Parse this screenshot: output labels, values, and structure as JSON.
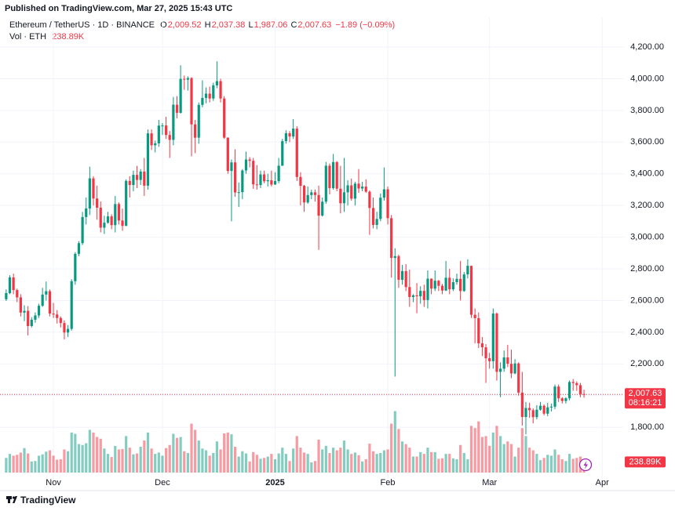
{
  "published": "Published on TradingView.com, Mar 27, 2025 15:43 UTC",
  "chart_data": {
    "type": "candlestick",
    "symbol": "Ethereum / TetherUS · 1D · BINANCE",
    "ohlc_labels": [
      {
        "key": "O",
        "value": "2,009.52"
      },
      {
        "key": "H",
        "value": "2,037.38"
      },
      {
        "key": "L",
        "value": "1,987.06"
      },
      {
        "key": "C",
        "value": "2,007.63"
      }
    ],
    "change": "−1.89 (−0.09%)",
    "volume_title": "Vol · ETH",
    "volume_label": "238.89K",
    "last_price_label": "2,007.63",
    "countdown": "08:16:21",
    "up_color": "#089981",
    "down_color": "#f23645",
    "grid": true,
    "xlim": [
      -1.7,
      170
    ],
    "xticks": [
      {
        "value": 13,
        "label": "Nov"
      },
      {
        "value": 43,
        "label": "Dec"
      },
      {
        "value": 74,
        "label": "2025"
      },
      {
        "value": 105,
        "label": "Feb"
      },
      {
        "value": 133,
        "label": "Mar"
      },
      {
        "value": 164,
        "label": "Apr"
      }
    ],
    "ylim": [
      1430,
      4388
    ],
    "yticks": [
      {
        "value": 1800,
        "label": "1,800.00"
      },
      {
        "value": 2000,
        "label": "2,000.00"
      },
      {
        "value": 2200,
        "label": "2,200.00"
      },
      {
        "value": 2400,
        "label": "2,400.00"
      },
      {
        "value": 2600,
        "label": "2,600.00"
      },
      {
        "value": 2800,
        "label": "2,800.00"
      },
      {
        "value": 3000,
        "label": "3,000.00"
      },
      {
        "value": 3200,
        "label": "3,200.00"
      },
      {
        "value": 3400,
        "label": "3,400.00"
      },
      {
        "value": 3600,
        "label": "3,600.00"
      },
      {
        "value": 3800,
        "label": "3,800.00"
      },
      {
        "value": 4000,
        "label": "4,000.00"
      },
      {
        "value": 4200,
        "label": "4,200.00"
      }
    ],
    "volume_ylim": [
      0,
      2200
    ],
    "open": [
      2608,
      2647,
      2746,
      2666,
      2620,
      2524,
      2535,
      2439,
      2479,
      2506,
      2567,
      2638,
      2659,
      2518,
      2512,
      2490,
      2458,
      2398,
      2421,
      2722,
      2895,
      2962,
      3127,
      3181,
      3371,
      3244,
      3186,
      3060,
      3091,
      3131,
      3076,
      3209,
      3105,
      3071,
      3355,
      3329,
      3393,
      3361,
      3414,
      3325,
      3655,
      3580,
      3592,
      3704,
      3705,
      3645,
      3614,
      3836,
      3785,
      3999,
      3994,
      4004,
      3712,
      3628,
      3835,
      3879,
      3906,
      3875,
      3958,
      3985,
      3875,
      3628,
      3418,
      3472,
      3282,
      3284,
      3421,
      3490,
      3482,
      3333,
      3329,
      3396,
      3353,
      3359,
      3332,
      3354,
      3451,
      3606,
      3656,
      3635,
      3685,
      3380,
      3324,
      3219,
      3266,
      3283,
      3266,
      3136,
      3224,
      3451,
      3309,
      3474,
      3306,
      3214,
      3283,
      3327,
      3243,
      3338,
      3307,
      3319,
      3287,
      3184,
      3077,
      3115,
      3249,
      3302,
      3120,
      2869,
      2880,
      2731,
      2786,
      2685,
      2622,
      2633,
      2627,
      2661,
      2603,
      2738,
      2675,
      2725,
      2693,
      2663,
      2744,
      2671,
      2716,
      2737,
      2660,
      2765,
      2819,
      2510,
      2489,
      2330,
      2305,
      2236,
      2217,
      2518,
      2150,
      2170,
      2241,
      2201,
      2140,
      2203,
      2019,
      1865,
      1922,
      1908,
      1864,
      1911,
      1936,
      1886,
      1926,
      1930,
      2057,
      1983,
      1966,
      1983,
      2086,
      2079,
      2066,
      2009.52
    ],
    "high": [
      2670,
      2760,
      2770,
      2675,
      2640,
      2570,
      2565,
      2495,
      2525,
      2580,
      2680,
      2720,
      2670,
      2585,
      2540,
      2500,
      2475,
      2445,
      2735,
      2905,
      2975,
      3160,
      3250,
      3445,
      3385,
      3325,
      3225,
      3135,
      3160,
      3145,
      3260,
      3220,
      3180,
      3365,
      3385,
      3420,
      3450,
      3430,
      3500,
      3680,
      3680,
      3610,
      3740,
      3720,
      3760,
      3670,
      3885,
      3890,
      4085,
      4020,
      4015,
      4010,
      3740,
      3850,
      3990,
      3945,
      3950,
      3975,
      4110,
      4000,
      3890,
      3630,
      3490,
      3555,
      3345,
      3430,
      3540,
      3505,
      3500,
      3455,
      3420,
      3420,
      3400,
      3420,
      3410,
      3500,
      3620,
      3675,
      3670,
      3745,
      3700,
      3410,
      3330,
      3320,
      3300,
      3300,
      3325,
      3250,
      3475,
      3465,
      3525,
      3480,
      3450,
      3500,
      3360,
      3370,
      3350,
      3430,
      3350,
      3365,
      3295,
      3250,
      3160,
      3275,
      3440,
      3320,
      3140,
      2930,
      2890,
      2825,
      2830,
      2795,
      2640,
      2710,
      2690,
      2700,
      2790,
      2740,
      2790,
      2730,
      2705,
      2850,
      2800,
      2740,
      2770,
      2850,
      2780,
      2860,
      2820,
      2550,
      2525,
      2370,
      2325,
      2270,
      2550,
      2525,
      2210,
      2285,
      2320,
      2290,
      2230,
      2210,
      2150,
      1960,
      1955,
      1920,
      1940,
      1960,
      1945,
      1955,
      1950,
      2070,
      2070,
      1990,
      1990,
      2095,
      2105,
      2090,
      2080,
      2037.38
    ],
    "low": [
      2597,
      2640,
      2640,
      2590,
      2500,
      2470,
      2380,
      2430,
      2460,
      2490,
      2560,
      2600,
      2500,
      2490,
      2455,
      2430,
      2355,
      2370,
      2410,
      2700,
      2880,
      2950,
      3080,
      3140,
      3200,
      3110,
      3030,
      3020,
      3085,
      3050,
      3030,
      3080,
      3040,
      3070,
      3250,
      3290,
      3310,
      3330,
      3260,
      3300,
      3550,
      3535,
      3570,
      3645,
      3620,
      3500,
      3580,
      3750,
      3780,
      3930,
      3925,
      3510,
      3530,
      3590,
      3820,
      3845,
      3850,
      3860,
      3940,
      3850,
      3620,
      3400,
      3100,
      3255,
      3190,
      3240,
      3400,
      3440,
      3305,
      3300,
      3310,
      3340,
      3320,
      3320,
      3330,
      3340,
      3450,
      3590,
      3600,
      3620,
      3355,
      3200,
      3160,
      3210,
      3240,
      3225,
      2920,
      3130,
      3210,
      3270,
      3300,
      3290,
      3150,
      3160,
      3200,
      3230,
      3200,
      3280,
      3290,
      3280,
      3015,
      3055,
      3050,
      3100,
      3230,
      3080,
      2745,
      2120,
      2680,
      2700,
      2660,
      2560,
      2590,
      2520,
      2580,
      2560,
      2550,
      2640,
      2660,
      2660,
      2640,
      2660,
      2640,
      2660,
      2700,
      2600,
      2655,
      2740,
      2490,
      2330,
      2300,
      2250,
      2080,
      2170,
      2170,
      2095,
      1990,
      2150,
      2180,
      2110,
      2135,
      2000,
      1810,
      1755,
      1860,
      1825,
      1850,
      1905,
      1875,
      1870,
      1900,
      1915,
      1960,
      1950,
      1950,
      1970,
      2030,
      2030,
      1990,
      1987.06
    ],
    "close": [
      2647,
      2746,
      2666,
      2620,
      2524,
      2535,
      2439,
      2479,
      2506,
      2567,
      2638,
      2659,
      2518,
      2512,
      2490,
      2458,
      2398,
      2421,
      2722,
      2895,
      2962,
      3127,
      3181,
      3371,
      3244,
      3186,
      3060,
      3091,
      3131,
      3076,
      3209,
      3105,
      3071,
      3355,
      3329,
      3393,
      3361,
      3414,
      3325,
      3655,
      3580,
      3592,
      3704,
      3705,
      3645,
      3614,
      3836,
      3785,
      3999,
      3994,
      4004,
      3712,
      3628,
      3835,
      3879,
      3906,
      3875,
      3958,
      3985,
      3875,
      3628,
      3418,
      3472,
      3282,
      3284,
      3421,
      3490,
      3482,
      3333,
      3329,
      3396,
      3353,
      3359,
      3332,
      3354,
      3451,
      3606,
      3656,
      3635,
      3685,
      3380,
      3324,
      3219,
      3266,
      3283,
      3266,
      3136,
      3224,
      3451,
      3309,
      3474,
      3306,
      3214,
      3283,
      3327,
      3243,
      3338,
      3307,
      3319,
      3287,
      3184,
      3077,
      3115,
      3249,
      3302,
      3120,
      2869,
      2880,
      2731,
      2786,
      2685,
      2622,
      2633,
      2627,
      2661,
      2603,
      2738,
      2675,
      2725,
      2693,
      2663,
      2744,
      2671,
      2716,
      2737,
      2660,
      2765,
      2819,
      2510,
      2489,
      2330,
      2305,
      2236,
      2217,
      2518,
      2150,
      2170,
      2241,
      2201,
      2140,
      2203,
      2019,
      1865,
      1922,
      1908,
      1864,
      1911,
      1936,
      1886,
      1926,
      1930,
      2057,
      1983,
      1966,
      1983,
      2086,
      2079,
      2066,
      2009.52,
      2007.63
    ],
    "volume": [
      330,
      420,
      380,
      400,
      450,
      550,
      430,
      250,
      260,
      380,
      410,
      470,
      500,
      380,
      290,
      300,
      520,
      480,
      900,
      870,
      640,
      620,
      660,
      960,
      900,
      800,
      760,
      540,
      420,
      350,
      600,
      520,
      530,
      820,
      560,
      410,
      430,
      580,
      720,
      900,
      540,
      420,
      450,
      380,
      550,
      620,
      870,
      780,
      800,
      480,
      440,
      1100,
      960,
      720,
      540,
      500,
      380,
      440,
      700,
      520,
      880,
      900,
      860,
      580,
      360,
      480,
      430,
      250,
      460,
      400,
      310,
      330,
      360,
      420,
      300,
      430,
      560,
      420,
      260,
      540,
      820,
      560,
      450,
      420,
      230,
      260,
      740,
      520,
      600,
      440,
      560,
      500,
      560,
      720,
      520,
      420,
      450,
      390,
      250,
      300,
      650,
      480,
      420,
      440,
      500,
      520,
      1100,
      1380,
      980,
      700,
      640,
      560,
      360,
      360,
      460,
      420,
      560,
      460,
      460,
      310,
      320,
      420,
      420,
      320,
      300,
      620,
      440,
      300,
      1050,
      1000,
      1150,
      800,
      820,
      600,
      900,
      1050,
      820,
      640,
      700,
      640,
      360,
      560,
      1000,
      820,
      560,
      500,
      420,
      280,
      330,
      400,
      380,
      520,
      400,
      300,
      260,
      420,
      310,
      330,
      360,
      238.89
    ]
  },
  "footer": {
    "brand": "TradingView"
  }
}
